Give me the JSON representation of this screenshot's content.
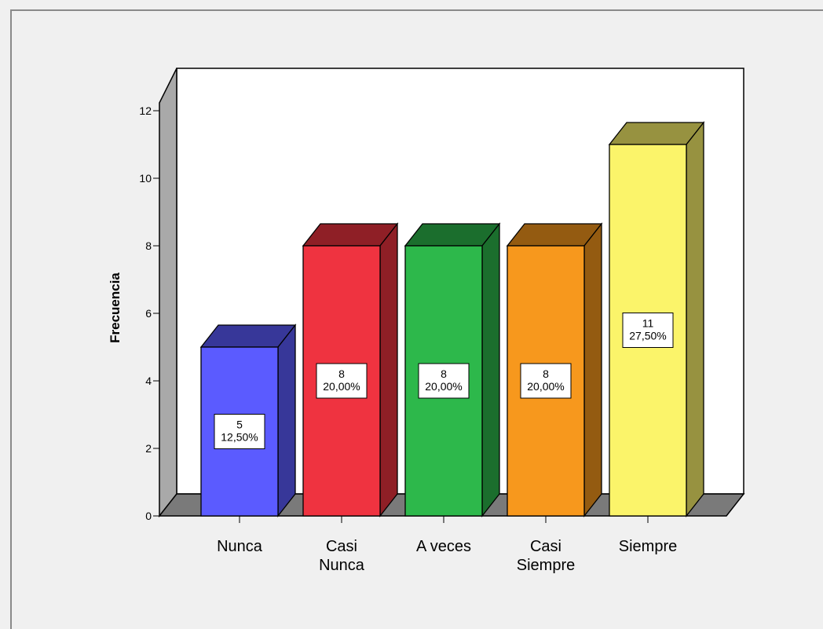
{
  "chart_data": {
    "type": "bar",
    "style": "3d",
    "categories": [
      "Nunca",
      "Casi\nNunca",
      "A veces",
      "Casi\nSiempre",
      "Siempre"
    ],
    "values": [
      5,
      8,
      8,
      8,
      11
    ],
    "labels": [
      [
        "5",
        "12,50%"
      ],
      [
        "8",
        "20,00%"
      ],
      [
        "8",
        "20,00%"
      ],
      [
        "8",
        "20,00%"
      ],
      [
        "11",
        "27,50%"
      ]
    ],
    "colors": [
      "#5b5bff",
      "#ef3340",
      "#2db84b",
      "#f7981d",
      "#fbf46a"
    ],
    "ylabel": "Frecuencia",
    "xlabel": "",
    "title": "",
    "ylim": [
      0,
      12
    ],
    "yticks": [
      0,
      2,
      4,
      6,
      8,
      10,
      12
    ],
    "grid": false,
    "legend": "none"
  }
}
